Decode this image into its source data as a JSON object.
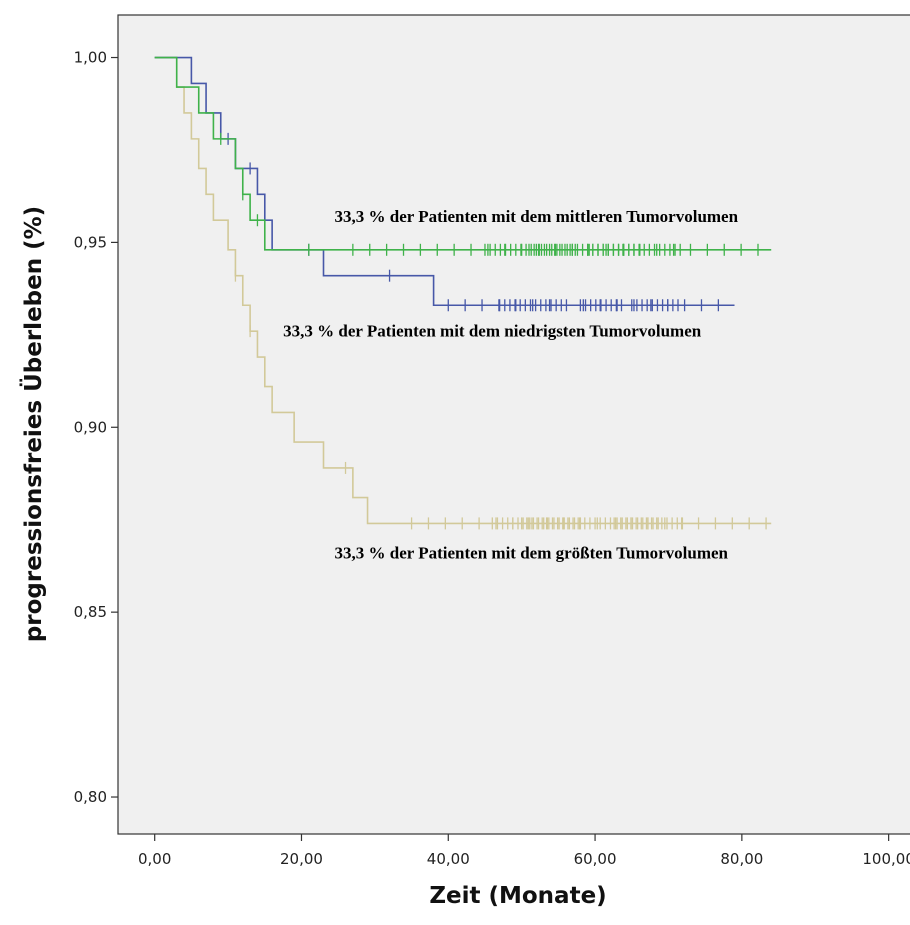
{
  "chart_data": {
    "type": "line",
    "subtype": "kaplan-meier step",
    "xlabel": "Zeit (Monate)",
    "ylabel": "progressionsfreies Überleben (%)",
    "xlim": [
      -5,
      104
    ],
    "ylim": [
      0.79,
      1.0115
    ],
    "x_ticks": [
      0,
      20,
      40,
      60,
      80,
      100
    ],
    "x_tick_labels": [
      "0,00",
      "20,00",
      "40,00",
      "60,00",
      "80,00",
      "100,00"
    ],
    "y_ticks": [
      0.8,
      0.85,
      0.9,
      0.95,
      1.0
    ],
    "y_tick_labels": [
      "0,80",
      "0,85",
      "0,90",
      "0,95",
      "1,00"
    ],
    "grid": false,
    "legend": "none",
    "series": [
      {
        "color": "#d2c999",
        "steps": [
          [
            0,
            1.0
          ],
          [
            3,
            0.992
          ],
          [
            4,
            0.985
          ],
          [
            5,
            0.978
          ],
          [
            6,
            0.97
          ],
          [
            7,
            0.963
          ],
          [
            8,
            0.956
          ],
          [
            10,
            0.948
          ],
          [
            11,
            0.941
          ],
          [
            12,
            0.933
          ],
          [
            13,
            0.926
          ],
          [
            14,
            0.919
          ],
          [
            15,
            0.911
          ],
          [
            16,
            0.904
          ],
          [
            19,
            0.896
          ],
          [
            23,
            0.889
          ],
          [
            27,
            0.881
          ],
          [
            29,
            0.874
          ],
          [
            84,
            0.874
          ]
        ],
        "censor_ranges": [
          [
            35,
            84
          ],
          [
            46,
            72
          ],
          [
            50,
            58
          ],
          [
            63,
            69
          ]
        ],
        "censor_points": [
          11,
          13,
          26
        ]
      },
      {
        "color": "#4758a8",
        "steps": [
          [
            0,
            1.0
          ],
          [
            5,
            0.993
          ],
          [
            7,
            0.985
          ],
          [
            9,
            0.978
          ],
          [
            11,
            0.97
          ],
          [
            14,
            0.963
          ],
          [
            15,
            0.956
          ],
          [
            16,
            0.948
          ],
          [
            23,
            0.941
          ],
          [
            38,
            0.933
          ],
          [
            79,
            0.933
          ]
        ],
        "censor_ranges": [
          [
            40,
            79
          ],
          [
            47,
            56
          ],
          [
            58,
            64
          ],
          [
            65,
            72
          ]
        ],
        "censor_points": [
          10,
          13,
          21,
          32
        ]
      },
      {
        "color": "#3fb24a",
        "steps": [
          [
            0,
            1.0
          ],
          [
            3,
            0.992
          ],
          [
            6,
            0.985
          ],
          [
            8,
            0.978
          ],
          [
            11,
            0.97
          ],
          [
            12,
            0.963
          ],
          [
            13,
            0.956
          ],
          [
            15,
            0.948
          ],
          [
            84,
            0.948
          ]
        ],
        "censor_ranges": [
          [
            27,
            84
          ],
          [
            45,
            72
          ],
          [
            51,
            58
          ],
          [
            59,
            66
          ]
        ],
        "censor_points": [
          9,
          12,
          14,
          21
        ]
      }
    ],
    "annotations": [
      {
        "text": "33,3 % der Patienten mit dem mittleren Tumorvolumen",
        "x": 24.5,
        "y": 0.9555
      },
      {
        "text": "33,3 % der Patienten mit dem niedrigsten Tumorvolumen",
        "x": 17.5,
        "y": 0.9245
      },
      {
        "text": "33,3 % der Patienten mit dem größten Tumorvolumen",
        "x": 24.5,
        "y": 0.8645
      }
    ]
  }
}
